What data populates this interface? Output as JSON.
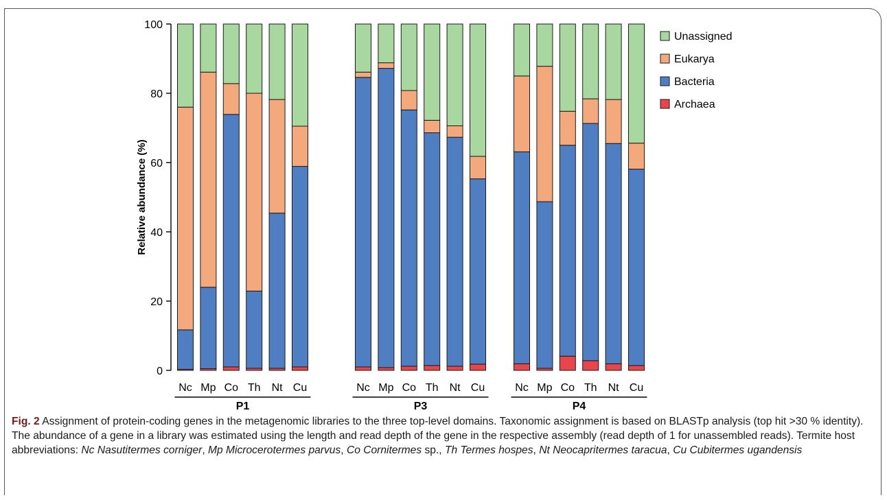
{
  "chart_data": {
    "type": "bar",
    "stacked": true,
    "ylabel": "Relative abundance (%)",
    "ylim": [
      0,
      100
    ],
    "yticks": [
      0,
      20,
      40,
      60,
      80,
      100
    ],
    "groups": [
      {
        "name": "P1",
        "categories": [
          "Nc",
          "Mp",
          "Co",
          "Th",
          "Nt",
          "Cu"
        ]
      },
      {
        "name": "P3",
        "categories": [
          "Nc",
          "Mp",
          "Co",
          "Th",
          "Nt",
          "Cu"
        ]
      },
      {
        "name": "P4",
        "categories": [
          "Nc",
          "Mp",
          "Co",
          "Th",
          "Nt",
          "Cu"
        ]
      }
    ],
    "series": [
      {
        "name": "Archaea",
        "color": "#e8464b",
        "values": [
          0.3,
          0.5,
          1.0,
          0.6,
          0.6,
          1.0,
          1.0,
          0.8,
          1.2,
          1.4,
          1.2,
          1.8,
          1.9,
          0.6,
          4.1,
          2.8,
          1.9,
          1.4
        ]
      },
      {
        "name": "Bacteria",
        "color": "#4f7fc2",
        "values": [
          11.4,
          23.5,
          72.9,
          22.3,
          44.8,
          57.9,
          83.6,
          86.4,
          74.0,
          67.2,
          66.1,
          53.5,
          61.2,
          48.1,
          60.9,
          68.5,
          63.6,
          56.7
        ]
      },
      {
        "name": "Eukarya",
        "color": "#f4a97c",
        "values": [
          64.3,
          62.1,
          8.9,
          57.1,
          32.8,
          11.6,
          1.5,
          1.6,
          5.6,
          3.6,
          3.3,
          6.5,
          21.9,
          39.1,
          9.8,
          7.1,
          12.7,
          7.5
        ]
      },
      {
        "name": "Unassigned",
        "color": "#a9d7a0",
        "values": [
          24.0,
          13.9,
          17.2,
          20.0,
          21.8,
          29.5,
          13.9,
          11.2,
          19.2,
          27.8,
          29.4,
          38.2,
          15.0,
          12.2,
          25.2,
          21.6,
          21.8,
          34.4
        ]
      }
    ],
    "legend": {
      "position": "right",
      "order": [
        "Unassigned",
        "Eukarya",
        "Bacteria",
        "Archaea"
      ]
    }
  },
  "caption": {
    "label": "Fig. 2",
    "text": " Assignment of protein-coding genes in the metagenomic libraries to the three top-level domains. Taxonomic assignment is based on BLASTp analysis (top hit >30 % identity). The abundance of a gene in a library was estimated using the length and read depth of the gene in the respective assembly (read depth of 1 for unassembled reads). Termite host abbreviations: ",
    "abbreviations": [
      {
        "abbr": "Nc",
        "taxon": "Nasutitermes corniger",
        "suffix": ""
      },
      {
        "abbr": "Mp",
        "taxon": "Microcerotermes parvus",
        "suffix": ""
      },
      {
        "abbr": "Co",
        "taxon": "Cornitermes",
        "suffix": " sp."
      },
      {
        "abbr": "Th",
        "taxon": "Termes hospes",
        "suffix": ""
      },
      {
        "abbr": "Nt",
        "taxon": "Neocapritermes taracua",
        "suffix": ""
      },
      {
        "abbr": "Cu",
        "taxon": "Cubitermes ugandensis",
        "suffix": ""
      }
    ]
  }
}
